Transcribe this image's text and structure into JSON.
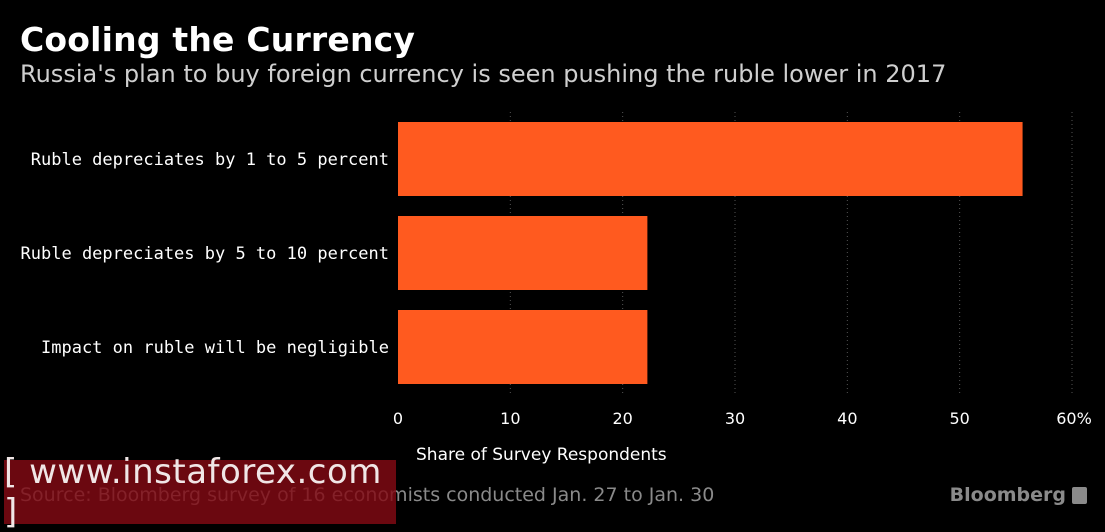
{
  "title": "Cooling the Currency",
  "subtitle": "Russia's plan to buy foreign currency is seen pushing the ruble lower in 2017",
  "source": "Source: Bloomberg survey of 16 economists conducted Jan. 27 to Jan. 30",
  "brand": "Bloomberg",
  "watermark": "[ www.instaforex.com ]",
  "colors": {
    "bar": "#ff5a1f",
    "background": "#000000",
    "grid": "#555555"
  },
  "chart_data": {
    "type": "bar",
    "orientation": "horizontal",
    "categories": [
      "Ruble depreciates by 1 to 5 percent",
      "Ruble depreciates by 5 to 10 percent",
      "Impact on ruble will be negligible"
    ],
    "values": [
      55.6,
      22.2,
      22.2
    ],
    "xlabel": "Share of Survey Respondents",
    "ylabel": "",
    "xlim": [
      0,
      60
    ],
    "ticks": [
      0,
      10,
      20,
      30,
      40,
      50,
      60
    ],
    "tick_labels": [
      "0",
      "10",
      "20",
      "30",
      "40",
      "50",
      "60%"
    ],
    "grid": true
  }
}
